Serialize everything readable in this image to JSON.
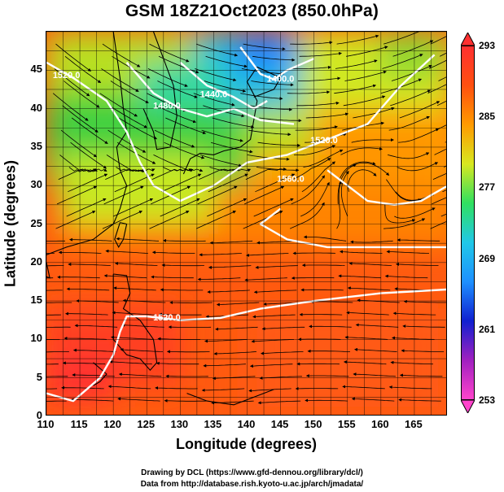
{
  "title": "GSM 18Z21Oct2023 (850.0hPa)",
  "chart_data": {
    "type": "map",
    "xlabel": "Longitude (degrees)",
    "ylabel": "Latitude  (degrees)",
    "xlim": [
      110,
      170
    ],
    "ylim": [
      0,
      50
    ],
    "xticks": [
      "110",
      "115",
      "120",
      "125",
      "130",
      "135",
      "140",
      "145",
      "150",
      "155",
      "160",
      "165"
    ],
    "yticks": [
      "0",
      "5",
      "10",
      "15",
      "20",
      "25",
      "30",
      "35",
      "40",
      "45"
    ],
    "colorbar": {
      "min": 253,
      "max": 293,
      "ticks": [
        "253",
        "261",
        "269",
        "277",
        "285",
        "293"
      ],
      "colors": [
        "#ff44cc",
        "#a020c0",
        "#1020d0",
        "#1e90ff",
        "#20c8e8",
        "#30e060",
        "#d8e820",
        "#ff9a00",
        "#ff5010",
        "#ff3030"
      ]
    },
    "contour_labels": [
      {
        "text": "1520.0",
        "lon": 113,
        "lat": 44
      },
      {
        "text": "1480.0",
        "lon": 128,
        "lat": 40
      },
      {
        "text": "1440.0",
        "lon": 135,
        "lat": 41.5
      },
      {
        "text": "1400.0",
        "lon": 145,
        "lat": 43.5
      },
      {
        "text": "1520.0",
        "lon": 151.5,
        "lat": 35.5
      },
      {
        "text": "1560.0",
        "lon": 146.5,
        "lat": 30.5
      },
      {
        "text": "1520.0",
        "lon": 128,
        "lat": 12.5
      }
    ]
  },
  "credits": {
    "line1": "Drawing by DCL (https://www.gfd-dennou.org/library/dcl/)",
    "line2": "Data from http://database.rish.kyoto-u.ac.jp/arch/jmadata/"
  }
}
